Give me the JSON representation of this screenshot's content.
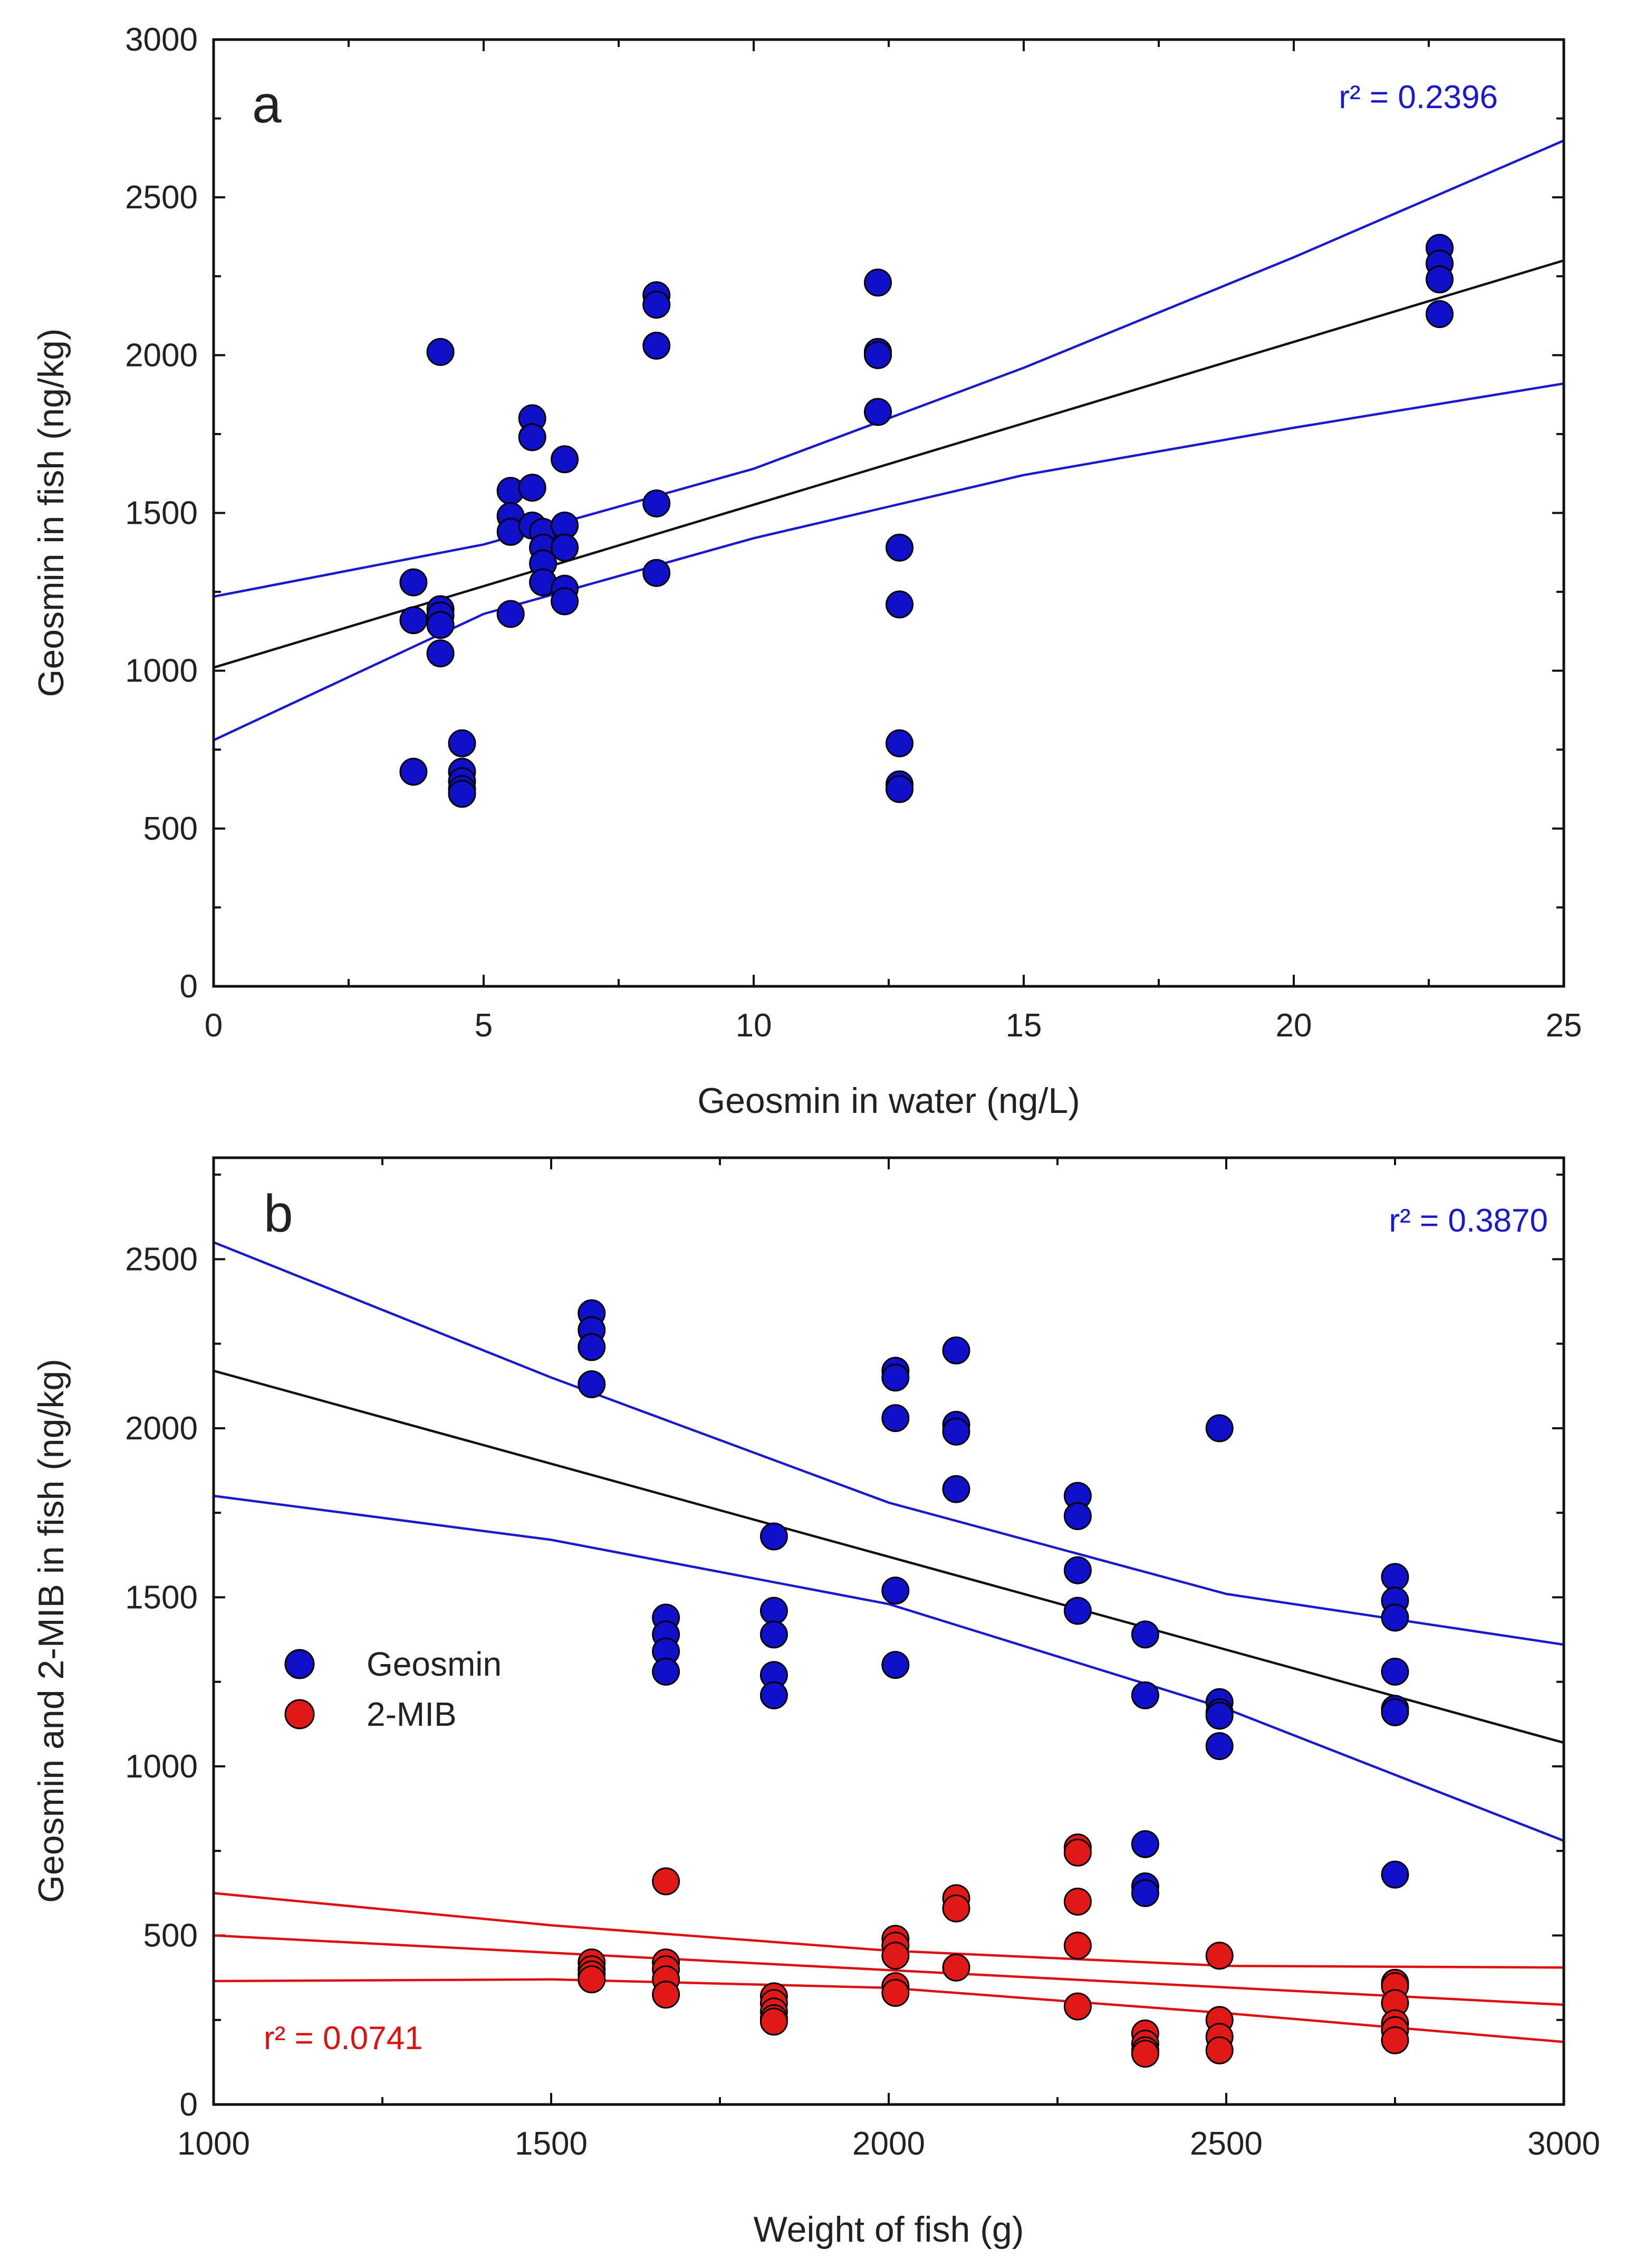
{
  "chart_data": [
    {
      "type": "scatter",
      "panel_label": "a",
      "xlabel": "Geosmin in water (ng/L)",
      "ylabel": "Geosmin in fish (ng/kg)",
      "xlim": [
        0,
        25
      ],
      "ylim": [
        0,
        3000
      ],
      "xticks": [
        0,
        5,
        10,
        15,
        20,
        25
      ],
      "yticks": [
        0,
        500,
        1000,
        1500,
        2000,
        2500,
        3000
      ],
      "annotation": "r² = 0.2396",
      "annotation_color": "#1a1acc",
      "series": [
        {
          "name": "Geosmin",
          "color": "#1010c8",
          "points": [
            [
              3.7,
              1280
            ],
            [
              3.7,
              1160
            ],
            [
              3.7,
              680
            ],
            [
              4.2,
              2010
            ],
            [
              4.2,
              1195
            ],
            [
              4.2,
              1175
            ],
            [
              4.2,
              1145
            ],
            [
              4.2,
              1055
            ],
            [
              4.6,
              770
            ],
            [
              4.6,
              680
            ],
            [
              4.6,
              650
            ],
            [
              4.6,
              625
            ],
            [
              4.6,
              610
            ],
            [
              5.5,
              1570
            ],
            [
              5.5,
              1490
            ],
            [
              5.5,
              1440
            ],
            [
              5.5,
              1180
            ],
            [
              5.9,
              1800
            ],
            [
              5.9,
              1740
            ],
            [
              5.9,
              1580
            ],
            [
              5.9,
              1460
            ],
            [
              6.1,
              1440
            ],
            [
              6.1,
              1390
            ],
            [
              6.1,
              1340
            ],
            [
              6.1,
              1280
            ],
            [
              6.5,
              1670
            ],
            [
              6.5,
              1460
            ],
            [
              6.5,
              1390
            ],
            [
              6.5,
              1260
            ],
            [
              6.5,
              1220
            ],
            [
              8.2,
              2190
            ],
            [
              8.2,
              2160
            ],
            [
              8.2,
              2030
            ],
            [
              8.2,
              1530
            ],
            [
              8.2,
              1310
            ],
            [
              12.3,
              2230
            ],
            [
              12.3,
              2010
            ],
            [
              12.3,
              2000
            ],
            [
              12.3,
              1820
            ],
            [
              12.7,
              1390
            ],
            [
              12.7,
              1210
            ],
            [
              12.7,
              770
            ],
            [
              12.7,
              640
            ],
            [
              12.7,
              625
            ],
            [
              22.7,
              2340
            ],
            [
              22.7,
              2290
            ],
            [
              22.7,
              2240
            ],
            [
              22.7,
              2130
            ]
          ]
        }
      ],
      "fit_lines": [
        {
          "name": "regression",
          "color": "#111111",
          "points": [
            [
              0,
              1010
            ],
            [
              25,
              2300
            ]
          ]
        },
        {
          "name": "upper confidence band",
          "color": "#1a1acc",
          "points": [
            [
              0,
              1235
            ],
            [
              5,
              1400
            ],
            [
              10,
              1640
            ],
            [
              15,
              1960
            ],
            [
              20,
              2310
            ],
            [
              25,
              2680
            ]
          ]
        },
        {
          "name": "lower confidence band",
          "color": "#1a1acc",
          "points": [
            [
              0,
              780
            ],
            [
              5,
              1180
            ],
            [
              10,
              1420
            ],
            [
              15,
              1620
            ],
            [
              20,
              1770
            ],
            [
              25,
              1910
            ]
          ]
        }
      ]
    },
    {
      "type": "scatter",
      "panel_label": "b",
      "xlabel": "Weight of fish (g)",
      "ylabel": "Geosmin and 2-MIB in fish (ng/kg)",
      "xlim": [
        1000,
        3000
      ],
      "ylim": [
        0,
        2800
      ],
      "xticks": [
        1000,
        1500,
        2000,
        2500,
        3000
      ],
      "yticks": [
        0,
        500,
        1000,
        1500,
        2000,
        2500
      ],
      "annotations": [
        {
          "text": "r² = 0.3870",
          "color": "#1a1acc"
        },
        {
          "text": "r² = 0.0741",
          "color": "#dd1111"
        }
      ],
      "legend": [
        {
          "name": "Geosmin",
          "color": "#1010c8"
        },
        {
          "name": "2-MIB",
          "color": "#e01818"
        }
      ],
      "series": [
        {
          "name": "Geosmin",
          "color": "#1010c8",
          "points": [
            [
              1560,
              2340
            ],
            [
              1560,
              2290
            ],
            [
              1560,
              2240
            ],
            [
              1560,
              2130
            ],
            [
              1670,
              1440
            ],
            [
              1670,
              1390
            ],
            [
              1670,
              1340
            ],
            [
              1670,
              1280
            ],
            [
              1830,
              1680
            ],
            [
              1830,
              1460
            ],
            [
              1830,
              1390
            ],
            [
              1830,
              1270
            ],
            [
              1830,
              1210
            ],
            [
              2010,
              2170
            ],
            [
              2010,
              2150
            ],
            [
              2010,
              2030
            ],
            [
              2010,
              1520
            ],
            [
              2010,
              1300
            ],
            [
              2100,
              2230
            ],
            [
              2100,
              2010
            ],
            [
              2100,
              1990
            ],
            [
              2100,
              1820
            ],
            [
              2280,
              1800
            ],
            [
              2280,
              1740
            ],
            [
              2280,
              1580
            ],
            [
              2280,
              1460
            ],
            [
              2380,
              1390
            ],
            [
              2380,
              1210
            ],
            [
              2380,
              770
            ],
            [
              2380,
              645
            ],
            [
              2380,
              625
            ],
            [
              2490,
              2000
            ],
            [
              2490,
              1190
            ],
            [
              2490,
              1160
            ],
            [
              2490,
              1150
            ],
            [
              2490,
              1060
            ],
            [
              2750,
              1560
            ],
            [
              2750,
              1490
            ],
            [
              2750,
              1440
            ],
            [
              2750,
              1280
            ],
            [
              2750,
              1170
            ],
            [
              2750,
              1160
            ],
            [
              2750,
              680
            ]
          ]
        },
        {
          "name": "2-MIB",
          "color": "#e01818",
          "points": [
            [
              1560,
              420
            ],
            [
              1560,
              400
            ],
            [
              1560,
              385
            ],
            [
              1560,
              370
            ],
            [
              1670,
              660
            ],
            [
              1670,
              420
            ],
            [
              1670,
              400
            ],
            [
              1670,
              370
            ],
            [
              1670,
              325
            ],
            [
              1830,
              320
            ],
            [
              1830,
              300
            ],
            [
              1830,
              275
            ],
            [
              1830,
              255
            ],
            [
              1830,
              245
            ],
            [
              2010,
              490
            ],
            [
              2010,
              470
            ],
            [
              2010,
              440
            ],
            [
              2010,
              350
            ],
            [
              2010,
              330
            ],
            [
              2100,
              610
            ],
            [
              2100,
              580
            ],
            [
              2100,
              405
            ],
            [
              2280,
              760
            ],
            [
              2280,
              745
            ],
            [
              2280,
              600
            ],
            [
              2280,
              470
            ],
            [
              2280,
              290
            ],
            [
              2380,
              210
            ],
            [
              2380,
              180
            ],
            [
              2380,
              160
            ],
            [
              2380,
              150
            ],
            [
              2490,
              440
            ],
            [
              2490,
              250
            ],
            [
              2490,
              200
            ],
            [
              2490,
              160
            ],
            [
              2750,
              360
            ],
            [
              2750,
              350
            ],
            [
              2750,
              300
            ],
            [
              2750,
              240
            ],
            [
              2750,
              220
            ],
            [
              2750,
              190
            ]
          ]
        }
      ],
      "fit_lines": [
        {
          "name": "Geosmin regression",
          "color": "#111111",
          "points": [
            [
              1000,
              2170
            ],
            [
              3000,
              1070
            ]
          ]
        },
        {
          "name": "Geosmin upper band",
          "color": "#1a1acc",
          "points": [
            [
              1000,
              2550
            ],
            [
              1500,
              2150
            ],
            [
              2000,
              1780
            ],
            [
              2500,
              1510
            ],
            [
              3000,
              1360
            ]
          ]
        },
        {
          "name": "Geosmin lower band",
          "color": "#1a1acc",
          "points": [
            [
              1000,
              1800
            ],
            [
              1500,
              1670
            ],
            [
              2000,
              1480
            ],
            [
              2500,
              1170
            ],
            [
              3000,
              780
            ]
          ]
        },
        {
          "name": "2-MIB regression",
          "color": "#dd1111",
          "points": [
            [
              1000,
              500
            ],
            [
              3000,
              295
            ]
          ]
        },
        {
          "name": "2-MIB upper band",
          "color": "#dd1111",
          "points": [
            [
              1000,
              625
            ],
            [
              1500,
              530
            ],
            [
              2000,
              455
            ],
            [
              2500,
              410
            ],
            [
              3000,
              405
            ]
          ]
        },
        {
          "name": "2-MIB lower band",
          "color": "#dd1111",
          "points": [
            [
              1000,
              365
            ],
            [
              1500,
              370
            ],
            [
              2000,
              345
            ],
            [
              2500,
              270
            ],
            [
              3000,
              185
            ]
          ]
        }
      ]
    }
  ]
}
